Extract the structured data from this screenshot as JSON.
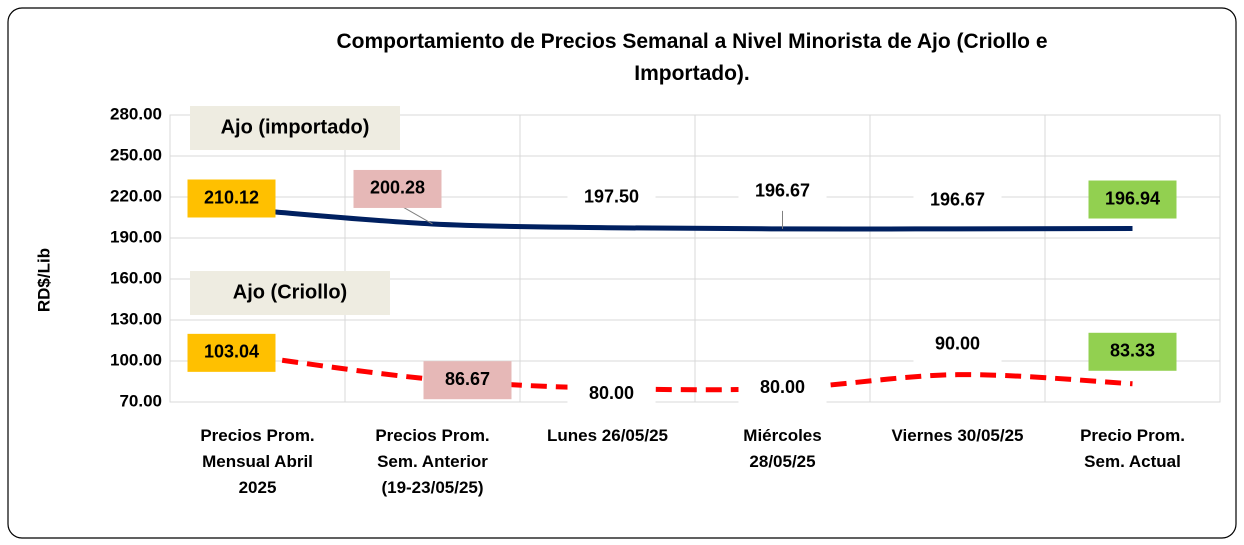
{
  "chart_data": {
    "type": "line",
    "title": "Comportamiento de Precios Semanal a Nivel Minorista de Ajo (Criollo e Importado).",
    "ylabel": "RD$/Lib",
    "categories": [
      "Precios Prom.\nMensual Abril\n2025",
      "Precios Prom.\nSem. Anterior\n(19-23/05/25)",
      "Lunes  26/05/25",
      "Miércoles\n28/05/25",
      "Viernes 30/05/25",
      "Precio Prom.\nSem. Actual"
    ],
    "series": [
      {
        "name": "Ajo (importado)",
        "color": "#002060",
        "dashed": false,
        "values": [
          210.12,
          200.28,
          197.5,
          196.67,
          196.67,
          196.94
        ],
        "value_labels": [
          "210.12",
          "200.28",
          "197.50",
          "196.67",
          "196.67",
          "196.94"
        ]
      },
      {
        "name": "Ajo (Criollo)",
        "color": "#ff0000",
        "dashed": true,
        "values": [
          103.04,
          86.67,
          80,
          80,
          90,
          83.33
        ],
        "value_labels": [
          "103.04",
          "86.67",
          "80.00",
          "80.00",
          "90.00",
          "83.33"
        ]
      }
    ],
    "label_colors": [
      "#ffc000",
      "#e6b8b7",
      "#ffffff",
      "#ffffff",
      "#ffffff",
      "#92d050"
    ],
    "ylim": [
      70,
      280
    ],
    "yticks": [
      {
        "value": 70,
        "label": "70.00"
      },
      {
        "value": 100,
        "label": "100.00"
      },
      {
        "value": 130,
        "label": "130.00"
      },
      {
        "value": 160,
        "label": "160.00"
      },
      {
        "value": 190,
        "label": "190.00"
      },
      {
        "value": 220,
        "label": "220.00"
      },
      {
        "value": 250,
        "label": "250.00"
      },
      {
        "value": 280,
        "label": "280.00"
      }
    ],
    "grid": true
  }
}
